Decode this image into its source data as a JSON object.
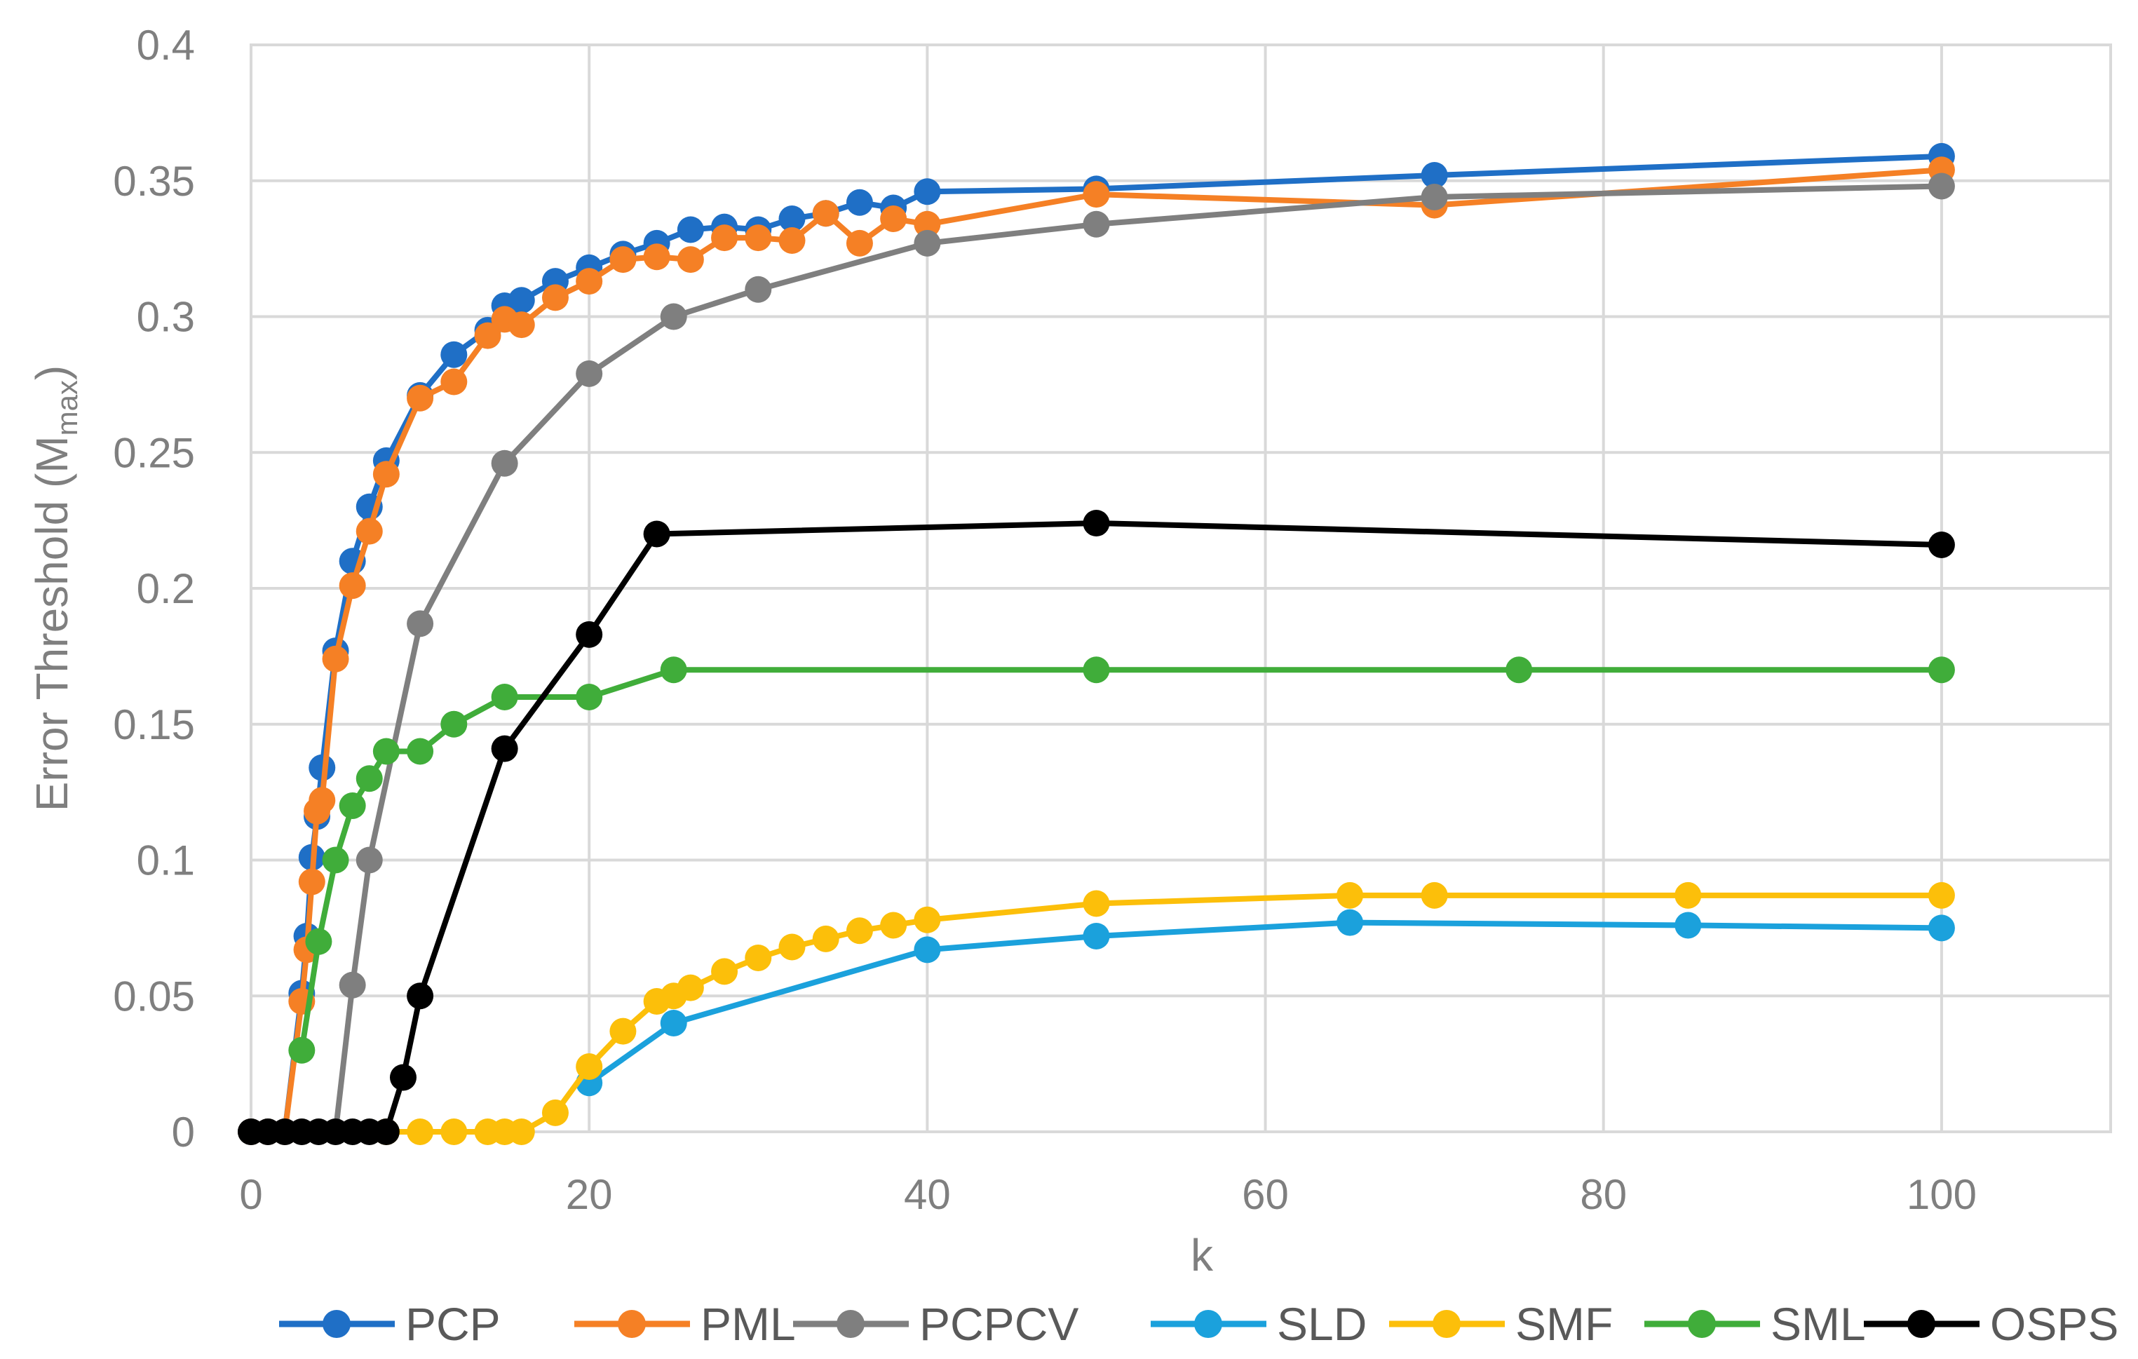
{
  "chart_data": {
    "type": "line",
    "title": "",
    "xlabel": "k",
    "ylabel": "Error Threshold (M",
    "ylabel_sub": "max",
    "ylabel_suffix": ")",
    "xlim": [
      0,
      110
    ],
    "ylim": [
      0,
      0.4
    ],
    "xticks": [
      0,
      20,
      40,
      60,
      80,
      100
    ],
    "yticks": [
      0,
      0.05,
      0.1,
      0.15,
      0.2,
      0.25,
      0.3,
      0.35,
      0.4
    ],
    "xtick_labels": [
      "0",
      "20",
      "40",
      "60",
      "80",
      "100"
    ],
    "ytick_labels": [
      "0",
      "0.05",
      "0.1",
      "0.15",
      "0.2",
      "0.25",
      "0.3",
      "0.35",
      "0.4"
    ],
    "grid": true,
    "legend_position": "bottom",
    "series": [
      {
        "name": "PCP",
        "color": "#1f6fc6",
        "x": [
          0,
          1,
          2,
          3,
          3.3,
          3.6,
          3.9,
          4.2,
          5,
          6,
          7,
          8,
          10,
          12,
          14,
          15,
          16,
          18,
          20,
          22,
          24,
          26,
          28,
          30,
          32,
          34,
          36,
          38,
          40,
          50,
          70,
          100
        ],
        "y": [
          0,
          0,
          0,
          0.051,
          0.072,
          0.101,
          0.116,
          0.134,
          0.177,
          0.21,
          0.23,
          0.247,
          0.271,
          0.286,
          0.295,
          0.304,
          0.306,
          0.313,
          0.318,
          0.323,
          0.327,
          0.332,
          0.333,
          0.332,
          0.336,
          0.338,
          0.342,
          0.34,
          0.346,
          0.347,
          0.352,
          0.359
        ]
      },
      {
        "name": "PML",
        "color": "#f58025",
        "x": [
          0,
          1,
          2,
          3,
          3.3,
          3.6,
          3.9,
          4.2,
          5,
          6,
          7,
          8,
          10,
          12,
          14,
          15,
          16,
          18,
          20,
          22,
          24,
          26,
          28,
          30,
          32,
          34,
          36,
          38,
          40,
          50,
          70,
          100
        ],
        "y": [
          0,
          0,
          0,
          0.048,
          0.067,
          0.092,
          0.118,
          0.122,
          0.174,
          0.201,
          0.221,
          0.242,
          0.27,
          0.276,
          0.293,
          0.299,
          0.297,
          0.307,
          0.313,
          0.321,
          0.322,
          0.321,
          0.329,
          0.329,
          0.328,
          0.338,
          0.327,
          0.336,
          0.334,
          0.345,
          0.341,
          0.354
        ]
      },
      {
        "name": "PCPCV",
        "color": "#7f7f7f",
        "x": [
          0,
          1,
          2,
          3,
          4,
          5,
          6,
          7,
          10,
          15,
          20,
          25,
          30,
          40,
          50,
          70,
          100
        ],
        "y": [
          0,
          0,
          0,
          0,
          0,
          0,
          0.054,
          0.1,
          0.187,
          0.246,
          0.279,
          0.3,
          0.31,
          0.327,
          0.334,
          0.344,
          0.348
        ]
      },
      {
        "name": "SLD",
        "color": "#1ba1dc",
        "x": [
          20,
          25,
          40,
          50,
          65,
          85,
          100
        ],
        "y": [
          0.018,
          0.04,
          0.067,
          0.072,
          0.077,
          0.076,
          0.075
        ]
      },
      {
        "name": "SMF",
        "color": "#fcbf0a",
        "x": [
          8,
          10,
          12,
          14,
          15,
          16,
          18,
          20,
          22,
          24,
          25,
          26,
          28,
          30,
          32,
          34,
          36,
          38,
          40,
          50,
          65,
          70,
          85,
          100
        ],
        "y": [
          0,
          0,
          0,
          0,
          0,
          0,
          0.007,
          0.024,
          0.037,
          0.048,
          0.05,
          0.053,
          0.059,
          0.064,
          0.068,
          0.071,
          0.074,
          0.076,
          0.078,
          0.084,
          0.087,
          0.087,
          0.087,
          0.087
        ]
      },
      {
        "name": "SML",
        "color": "#40ad3a",
        "x": [
          3,
          4,
          5,
          6,
          7,
          8,
          10,
          12,
          15,
          20,
          25,
          50,
          75,
          100
        ],
        "y": [
          0.03,
          0.07,
          0.1,
          0.12,
          0.13,
          0.14,
          0.14,
          0.15,
          0.16,
          0.16,
          0.17,
          0.17,
          0.17,
          0.17
        ]
      },
      {
        "name": "OSPS",
        "color": "#000000",
        "x": [
          0,
          1,
          2,
          3,
          4,
          5,
          6,
          7,
          8,
          9,
          10,
          15,
          20,
          24,
          50,
          100
        ],
        "y": [
          0,
          0,
          0,
          0,
          0,
          0,
          0,
          0,
          0,
          0.02,
          0.05,
          0.141,
          0.183,
          0.22,
          0.224,
          0.216
        ]
      }
    ]
  }
}
